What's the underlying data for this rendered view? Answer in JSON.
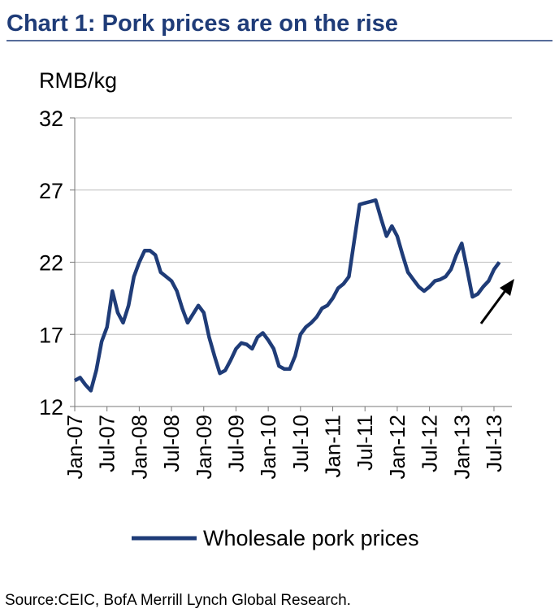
{
  "chart_data": {
    "type": "line",
    "title": "Chart 1: Pork prices are on the rise",
    "y_label": "RMB/kg",
    "source": "Source:CEIC, BofA Merrill Lynch Global Research.",
    "categories": [
      "Jan-07",
      null,
      null,
      null,
      null,
      null,
      "Jul-07",
      null,
      null,
      null,
      null,
      null,
      "Jan-08",
      null,
      null,
      null,
      null,
      null,
      "Jul-08",
      null,
      null,
      null,
      null,
      null,
      "Jan-09",
      null,
      null,
      null,
      null,
      null,
      "Jul-09",
      null,
      null,
      null,
      null,
      null,
      "Jan-10",
      null,
      null,
      null,
      null,
      null,
      "Jul-10",
      null,
      null,
      null,
      null,
      null,
      "Jan-11",
      null,
      null,
      null,
      null,
      null,
      "Jul-11",
      null,
      null,
      null,
      null,
      null,
      "Jan-12",
      null,
      null,
      null,
      null,
      null,
      "Jul-12",
      null,
      null,
      null,
      null,
      null,
      "Jan-13",
      null,
      null,
      null,
      null,
      null,
      "Jul-13",
      null
    ],
    "series": [
      {
        "name": "Wholesale pork prices",
        "color": "#1f3c78",
        "values": [
          13.8,
          14,
          13.5,
          13.1,
          14.5,
          16.5,
          17.5,
          20,
          18.5,
          17.8,
          19,
          21,
          22,
          22.8,
          22.8,
          22.5,
          21.3,
          21,
          20.7,
          20,
          18.8,
          17.8,
          18.4,
          19,
          18.5,
          16.8,
          15.5,
          14.3,
          14.5,
          15.2,
          16,
          16.4,
          16.3,
          16,
          16.8,
          17.1,
          16.6,
          16,
          14.8,
          14.6,
          14.6,
          15.5,
          17,
          17.5,
          17.8,
          18.2,
          18.8,
          19,
          19.5,
          20.2,
          20.5,
          21,
          23.5,
          26,
          26.1,
          26.2,
          26.3,
          25,
          23.8,
          24.5,
          23.8,
          22.5,
          21.3,
          20.8,
          20.3,
          20,
          20.3,
          20.7,
          20.8,
          21,
          21.5,
          22.5,
          23.3,
          21.5,
          19.6,
          19.8,
          20.3,
          20.7,
          21.5,
          22
        ]
      }
    ],
    "ylim": [
      12,
      32
    ],
    "yticks": [
      12,
      17,
      22,
      27,
      32
    ],
    "grid": true
  }
}
